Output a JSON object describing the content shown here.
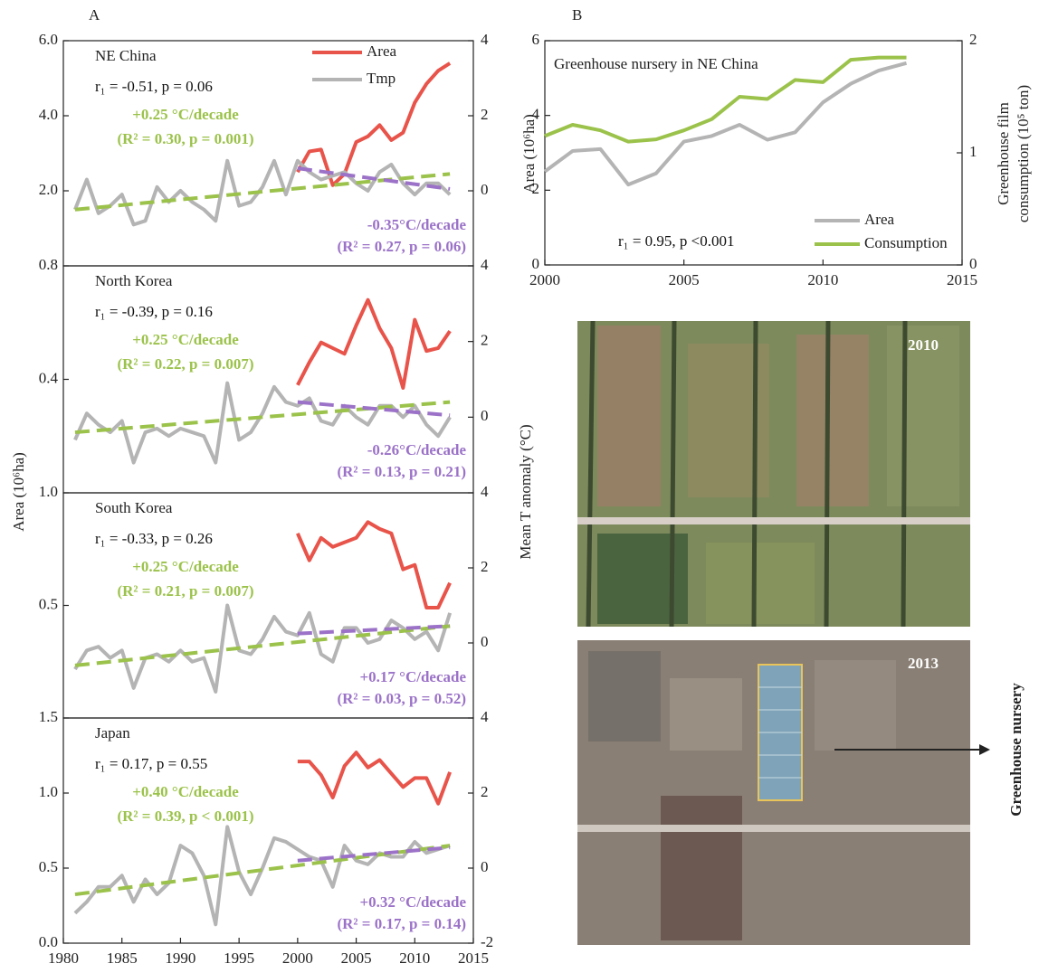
{
  "panel_labels": [
    "A",
    "B"
  ],
  "shared_axis_labels": {
    "y": "Area (10⁶ha)",
    "y2": "Mean T anomaly (°C)"
  },
  "chart_data": [
    {
      "type": "line",
      "title": "NE China",
      "xlim": [
        1980,
        2015
      ],
      "ylim": [
        0,
        6
      ],
      "y2lim": [
        -2,
        4
      ],
      "yticks": [
        {
          "value": 2,
          "label": "2.0"
        },
        {
          "value": 4,
          "label": "4.0"
        },
        {
          "value": 6,
          "label": "6.0"
        }
      ],
      "y2ticks": [
        0,
        2,
        4
      ],
      "annotations": [
        "r₁ = -0.51, p = 0.06",
        "+0.25 °C/decade",
        "(R² = 0.30, p = 0.001)",
        "-0.35°C/decade",
        "(R² = 0.27, p = 0.06)"
      ],
      "series": [
        {
          "name": "Area",
          "color": "#e8534a",
          "x": [
            2000,
            2001,
            2002,
            2003,
            2004,
            2005,
            2006,
            2007,
            2008,
            2009,
            2010,
            2011,
            2012,
            2013
          ],
          "values": [
            2.5,
            3.05,
            3.1,
            2.15,
            2.45,
            3.3,
            3.45,
            3.75,
            3.35,
            3.55,
            4.35,
            4.85,
            5.2,
            5.4
          ]
        },
        {
          "name": "Tmp",
          "color": "#b4b4b4",
          "axis": "y2",
          "x": [
            1981,
            1982,
            1983,
            1984,
            1985,
            1986,
            1987,
            1988,
            1989,
            1990,
            1991,
            1992,
            1993,
            1994,
            1995,
            1996,
            1997,
            1998,
            1999,
            2000,
            2001,
            2002,
            2003,
            2004,
            2005,
            2006,
            2007,
            2008,
            2009,
            2010,
            2011,
            2012,
            2013
          ],
          "values": [
            -0.5,
            0.3,
            -0.6,
            -0.4,
            -0.1,
            -0.9,
            -0.8,
            0.1,
            -0.3,
            0.0,
            -0.3,
            -0.5,
            -0.8,
            0.8,
            -0.4,
            -0.3,
            0.1,
            0.8,
            -0.1,
            0.8,
            0.5,
            0.3,
            0.4,
            0.5,
            0.2,
            0.0,
            0.5,
            0.7,
            0.2,
            -0.1,
            0.2,
            0.2,
            -0.1
          ]
        },
        {
          "color": "#9bc24a",
          "axis": "y2",
          "dashed": true,
          "x": [
            1981,
            2013
          ],
          "values": [
            -0.5,
            0.45
          ]
        },
        {
          "color": "#9b72c8",
          "axis": "y2",
          "dashed": true,
          "x": [
            2000,
            2013
          ],
          "values": [
            0.6,
            0.05
          ]
        }
      ]
    },
    {
      "type": "line",
      "title": "North Korea",
      "xlim": [
        1980,
        2015
      ],
      "ylim": [
        0,
        0.8
      ],
      "y2lim": [
        -2,
        4
      ],
      "yticks": [
        0.4,
        0.8
      ],
      "y2ticks": [
        0,
        2,
        4
      ],
      "annotations": [
        "r₁ = -0.39, p = 0.16",
        "+0.25 °C/decade",
        "(R² = 0.22, p = 0.007)",
        "-0.26°C/decade",
        "(R² = 0.13, p = 0.21)"
      ],
      "series": [
        {
          "color": "#e8534a",
          "x": [
            2000,
            2001,
            2002,
            2003,
            2004,
            2005,
            2006,
            2007,
            2008,
            2009,
            2010,
            2011,
            2012,
            2013
          ],
          "values": [
            0.38,
            0.46,
            0.53,
            0.51,
            0.49,
            0.59,
            0.68,
            0.58,
            0.51,
            0.37,
            0.61,
            0.5,
            0.51,
            0.57
          ]
        },
        {
          "color": "#b4b4b4",
          "axis": "y2",
          "x": [
            1981,
            1982,
            1983,
            1984,
            1985,
            1986,
            1987,
            1988,
            1989,
            1990,
            1991,
            1992,
            1993,
            1994,
            1995,
            1996,
            1997,
            1998,
            1999,
            2000,
            2001,
            2002,
            2003,
            2004,
            2005,
            2006,
            2007,
            2008,
            2009,
            2010,
            2011,
            2012,
            2013
          ],
          "values": [
            -0.6,
            0.1,
            -0.2,
            -0.4,
            -0.1,
            -1.2,
            -0.4,
            -0.3,
            -0.5,
            -0.3,
            -0.4,
            -0.5,
            -1.2,
            0.9,
            -0.6,
            -0.4,
            0.1,
            0.8,
            0.4,
            0.3,
            0.5,
            -0.1,
            -0.2,
            0.3,
            0.0,
            -0.2,
            0.3,
            0.3,
            0.0,
            0.3,
            -0.2,
            -0.5,
            0.0
          ]
        },
        {
          "color": "#9bc24a",
          "axis": "y2",
          "dashed": true,
          "x": [
            1981,
            2013
          ],
          "values": [
            -0.4,
            0.4
          ]
        },
        {
          "color": "#9b72c8",
          "axis": "y2",
          "dashed": true,
          "x": [
            2000,
            2013
          ],
          "values": [
            0.4,
            0.05
          ]
        }
      ]
    },
    {
      "type": "line",
      "title": "South Korea",
      "xlim": [
        1980,
        2015
      ],
      "ylim": [
        0,
        1
      ],
      "y2lim": [
        -2,
        4
      ],
      "yticks": [
        0.5,
        {
          "value": 1,
          "label": "1.0"
        }
      ],
      "y2ticks": [
        0,
        2,
        4
      ],
      "annotations": [
        "r₁ = -0.33, p = 0.26",
        "+0.25 °C/decade",
        "(R² = 0.21, p = 0.007)",
        "+0.17 °C/decade",
        "(R² = 0.03, p = 0.52)"
      ],
      "series": [
        {
          "color": "#e8534a",
          "x": [
            2000,
            2001,
            2002,
            2003,
            2004,
            2005,
            2006,
            2007,
            2008,
            2009,
            2010,
            2011,
            2012,
            2013
          ],
          "values": [
            0.82,
            0.7,
            0.8,
            0.76,
            0.78,
            0.8,
            0.87,
            0.84,
            0.82,
            0.66,
            0.68,
            0.49,
            0.49,
            0.6
          ]
        },
        {
          "color": "#b4b4b4",
          "axis": "y2",
          "x": [
            1981,
            1982,
            1983,
            1984,
            1985,
            1986,
            1987,
            1988,
            1989,
            1990,
            1991,
            1992,
            1993,
            1994,
            1995,
            1996,
            1997,
            1998,
            1999,
            2000,
            2001,
            2002,
            2003,
            2004,
            2005,
            2006,
            2007,
            2008,
            2009,
            2010,
            2011,
            2012,
            2013
          ],
          "values": [
            -0.7,
            -0.2,
            -0.1,
            -0.4,
            -0.2,
            -1.2,
            -0.4,
            -0.3,
            -0.5,
            -0.2,
            -0.5,
            -0.4,
            -1.3,
            1.0,
            -0.2,
            -0.3,
            0.1,
            0.7,
            0.3,
            0.2,
            0.8,
            -0.3,
            -0.5,
            0.4,
            0.4,
            0.0,
            0.1,
            0.6,
            0.4,
            0.1,
            0.3,
            -0.2,
            0.8
          ]
        },
        {
          "color": "#9bc24a",
          "axis": "y2",
          "dashed": true,
          "x": [
            1981,
            2013
          ],
          "values": [
            -0.6,
            0.45
          ]
        },
        {
          "color": "#9b72c8",
          "axis": "y2",
          "dashed": true,
          "x": [
            2000,
            2013
          ],
          "values": [
            0.25,
            0.45
          ]
        }
      ]
    },
    {
      "type": "line",
      "title": "Japan",
      "xlim": [
        1980,
        2015
      ],
      "ylim": [
        0,
        1.5
      ],
      "y2lim": [
        -2,
        4
      ],
      "xticks": [
        1980,
        1985,
        1990,
        1995,
        2000,
        2005,
        2010,
        2015
      ],
      "yticks": [
        {
          "value": 0,
          "label": "0.0"
        },
        0.5,
        {
          "value": 1,
          "label": "1.0"
        },
        1.5
      ],
      "y2ticks": [
        -2,
        0,
        2,
        4
      ],
      "annotations": [
        "r₁ = 0.17, p = 0.55",
        "+0.40 °C/decade",
        "(R² = 0.39, p < 0.001)",
        "+0.32 °C/decade",
        "(R² = 0.17, p = 0.14)"
      ],
      "series": [
        {
          "color": "#e8534a",
          "x": [
            2000,
            2001,
            2002,
            2003,
            2004,
            2005,
            2006,
            2007,
            2008,
            2009,
            2010,
            2011,
            2012,
            2013
          ],
          "values": [
            1.21,
            1.21,
            1.12,
            0.97,
            1.18,
            1.27,
            1.17,
            1.22,
            1.13,
            1.04,
            1.1,
            1.1,
            0.93,
            1.14
          ]
        },
        {
          "color": "#b4b4b4",
          "axis": "y2",
          "x": [
            1981,
            1982,
            1983,
            1984,
            1985,
            1986,
            1987,
            1988,
            1989,
            1990,
            1991,
            1992,
            1993,
            1994,
            1995,
            1996,
            1997,
            1998,
            1999,
            2000,
            2001,
            2002,
            2003,
            2004,
            2005,
            2006,
            2007,
            2008,
            2009,
            2010,
            2011,
            2012,
            2013
          ],
          "values": [
            -1.2,
            -0.9,
            -0.5,
            -0.5,
            -0.2,
            -0.9,
            -0.3,
            -0.7,
            -0.4,
            0.6,
            0.4,
            -0.2,
            -1.5,
            1.1,
            -0.1,
            -0.7,
            0.0,
            0.8,
            0.7,
            0.5,
            0.3,
            0.2,
            -0.5,
            0.6,
            0.2,
            0.1,
            0.4,
            0.3,
            0.3,
            0.7,
            0.4,
            0.5,
            0.6
          ]
        },
        {
          "color": "#9bc24a",
          "axis": "y2",
          "dashed": true,
          "x": [
            1981,
            2013
          ],
          "values": [
            -0.7,
            0.6
          ]
        },
        {
          "color": "#9b72c8",
          "axis": "y2",
          "dashed": true,
          "x": [
            2000,
            2013
          ],
          "values": [
            0.2,
            0.55
          ]
        }
      ]
    },
    {
      "type": "line",
      "title": "Greenhouse nursery in NE China",
      "xlim": [
        2000,
        2015
      ],
      "ylim": [
        0,
        6
      ],
      "y2lim": [
        0,
        2
      ],
      "xticks": [
        2000,
        2005,
        2010,
        2015
      ],
      "yticks": [
        0,
        2,
        4,
        6
      ],
      "y2ticks": [
        0,
        1,
        2
      ],
      "ylabel": "Area (10⁶ha)",
      "y2label": [
        "Greenhouse film",
        "consumption (10⁵ ton)"
      ],
      "annotations": [
        "r₁ = 0.95,  p <0.001"
      ],
      "series": [
        {
          "name": "Area",
          "color": "#b4b4b4",
          "x": [
            2000,
            2001,
            2002,
            2003,
            2004,
            2005,
            2006,
            2007,
            2008,
            2009,
            2010,
            2011,
            2012,
            2013
          ],
          "values": [
            2.5,
            3.05,
            3.1,
            2.15,
            2.45,
            3.3,
            3.45,
            3.75,
            3.35,
            3.55,
            4.35,
            4.85,
            5.2,
            5.4
          ]
        },
        {
          "name": "Consumption",
          "color": "#9bc24a",
          "axis": "y2",
          "x": [
            2000,
            2001,
            2002,
            2003,
            2004,
            2005,
            2006,
            2007,
            2008,
            2009,
            2010,
            2011,
            2012,
            2013
          ],
          "values": [
            1.15,
            1.25,
            1.2,
            1.1,
            1.12,
            1.2,
            1.3,
            1.5,
            1.48,
            1.65,
            1.63,
            1.83,
            1.85,
            1.85
          ]
        }
      ]
    }
  ],
  "photos": [
    {
      "year": "2010"
    },
    {
      "year": "2013"
    }
  ],
  "photo_annotation": "Greenhouse nursery"
}
